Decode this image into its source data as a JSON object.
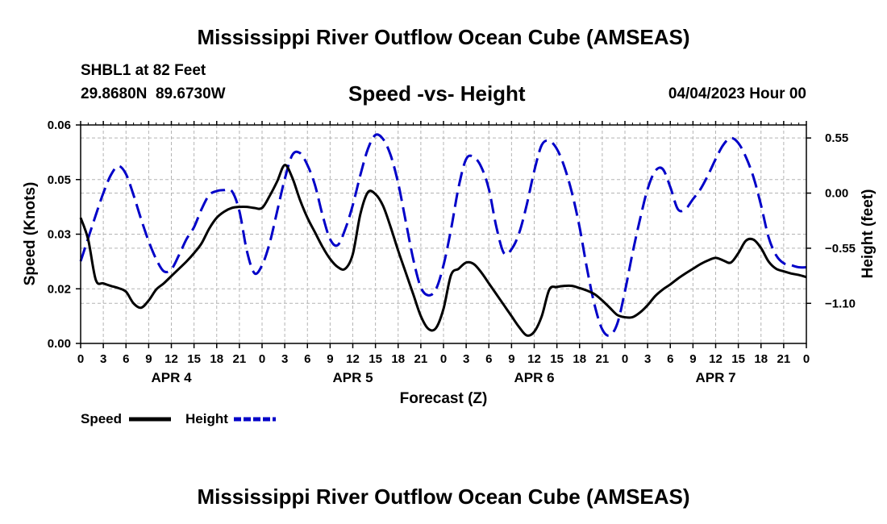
{
  "header": {
    "title": "Mississippi River Outflow Ocean Cube (AMSEAS)",
    "station": "SHBL1 at 82 Feet",
    "coords": "29.8680N  89.6730W",
    "datetime": "04/04/2023 Hour 00",
    "footer_title": "Mississippi River Outflow Ocean Cube (AMSEAS)"
  },
  "chart_data": {
    "type": "line",
    "title": "Speed -vs- Height",
    "xlabel": "Forecast (Z)",
    "ylabel_left": "Speed (Knots)",
    "ylabel_right": "Height (feet)",
    "grid": true,
    "xlim_hours": [
      0,
      96
    ],
    "ylim_left": [
      0.0,
      0.06
    ],
    "ylim_right": [
      -1.5,
      0.68
    ],
    "x_tick_labels": [
      "0",
      "3",
      "6",
      "9",
      "12",
      "15",
      "18",
      "21",
      "0",
      "3",
      "6",
      "9",
      "12",
      "15",
      "18",
      "21",
      "0",
      "3",
      "6",
      "9",
      "12",
      "15",
      "18",
      "21",
      "0",
      "3",
      "6",
      "9",
      "12",
      "15",
      "18",
      "21",
      "0"
    ],
    "y_left_ticks": [
      {
        "value": 0.0,
        "label": "0.00"
      },
      {
        "value": 0.015,
        "label": "0.02"
      },
      {
        "value": 0.03,
        "label": "0.03"
      },
      {
        "value": 0.045,
        "label": "0.05"
      },
      {
        "value": 0.06,
        "label": "0.06"
      }
    ],
    "y_right_ticks": [
      {
        "value": 0.55,
        "label": "0.55"
      },
      {
        "value": 0.0,
        "label": "0.00"
      },
      {
        "value": -0.55,
        "label": "−0.55"
      },
      {
        "value": -1.1,
        "label": "−1.10"
      }
    ],
    "day_labels": [
      {
        "hour": 12,
        "label": "APR 4"
      },
      {
        "hour": 36,
        "label": "APR 5"
      },
      {
        "hour": 60,
        "label": "APR 6"
      },
      {
        "hour": 84,
        "label": "APR 7"
      }
    ],
    "series": [
      {
        "name": "Speed",
        "axis": "left",
        "color": "#000000",
        "style": "solid",
        "x": [
          0,
          1,
          2,
          3,
          4,
          5,
          6,
          7,
          8,
          9,
          10,
          11,
          12,
          13,
          14,
          15,
          16,
          17,
          18,
          19,
          20,
          21,
          22,
          23,
          24,
          25,
          26,
          27,
          28,
          29,
          30,
          31,
          32,
          33,
          34,
          35,
          36,
          37,
          38,
          39,
          40,
          41,
          42,
          43,
          44,
          45,
          46,
          47,
          48,
          49,
          50,
          51,
          52,
          53,
          54,
          55,
          56,
          57,
          58,
          59,
          60,
          61,
          62,
          63,
          64,
          65,
          66,
          67,
          68,
          69,
          70,
          71,
          72,
          73,
          74,
          75,
          76,
          77,
          78,
          79,
          80,
          81,
          82,
          83,
          84,
          85,
          86,
          87,
          88,
          89,
          90,
          91,
          92,
          93,
          94,
          95,
          96
        ],
        "values": [
          0.0345,
          0.0285,
          0.0175,
          0.0165,
          0.0158,
          0.0152,
          0.0142,
          0.011,
          0.0098,
          0.0118,
          0.0148,
          0.0165,
          0.0185,
          0.0205,
          0.0225,
          0.0248,
          0.0275,
          0.0315,
          0.0345,
          0.0362,
          0.0372,
          0.0375,
          0.0375,
          0.0372,
          0.0372,
          0.0405,
          0.0445,
          0.049,
          0.0455,
          0.0395,
          0.0345,
          0.0305,
          0.0265,
          0.0232,
          0.021,
          0.0205,
          0.0245,
          0.0355,
          0.0415,
          0.041,
          0.0378,
          0.032,
          0.0255,
          0.0195,
          0.0135,
          0.0075,
          0.004,
          0.0042,
          0.0095,
          0.0188,
          0.0205,
          0.0222,
          0.0218,
          0.0195,
          0.0165,
          0.0135,
          0.0105,
          0.0075,
          0.0045,
          0.0022,
          0.0032,
          0.0075,
          0.0148,
          0.0155,
          0.0158,
          0.0158,
          0.0152,
          0.0145,
          0.0135,
          0.0118,
          0.0098,
          0.0078,
          0.0072,
          0.0072,
          0.0085,
          0.0105,
          0.013,
          0.0148,
          0.0162,
          0.0178,
          0.0192,
          0.0205,
          0.0218,
          0.0228,
          0.0235,
          0.0228,
          0.0222,
          0.0248,
          0.0282,
          0.0285,
          0.0262,
          0.0225,
          0.0205,
          0.0198,
          0.0192,
          0.0188,
          0.0182
        ]
      },
      {
        "name": "Height",
        "axis": "right",
        "color": "#0000c8",
        "style": "dashed",
        "x": [
          0,
          1,
          2,
          3,
          4,
          5,
          6,
          7,
          8,
          9,
          10,
          11,
          12,
          13,
          14,
          15,
          16,
          17,
          18,
          19,
          20,
          21,
          22,
          23,
          24,
          25,
          26,
          27,
          28,
          29,
          30,
          31,
          32,
          33,
          34,
          35,
          36,
          37,
          38,
          39,
          40,
          41,
          42,
          43,
          44,
          45,
          46,
          47,
          48,
          49,
          50,
          51,
          52,
          53,
          54,
          55,
          56,
          57,
          58,
          59,
          60,
          61,
          62,
          63,
          64,
          65,
          66,
          67,
          68,
          69,
          70,
          71,
          72,
          73,
          74,
          75,
          76,
          77,
          78,
          79,
          80,
          81,
          82,
          83,
          84,
          85,
          86,
          87,
          88,
          89,
          90,
          91,
          92,
          93,
          94,
          95,
          96
        ],
        "values": [
          -0.68,
          -0.45,
          -0.22,
          0.0,
          0.18,
          0.27,
          0.19,
          -0.02,
          -0.26,
          -0.48,
          -0.66,
          -0.78,
          -0.76,
          -0.62,
          -0.46,
          -0.34,
          -0.16,
          -0.02,
          0.02,
          0.03,
          0.02,
          -0.18,
          -0.58,
          -0.8,
          -0.72,
          -0.5,
          -0.18,
          0.14,
          0.38,
          0.4,
          0.28,
          0.08,
          -0.22,
          -0.46,
          -0.52,
          -0.36,
          -0.12,
          0.18,
          0.44,
          0.58,
          0.54,
          0.38,
          0.1,
          -0.28,
          -0.66,
          -0.94,
          -1.02,
          -0.96,
          -0.72,
          -0.36,
          0.06,
          0.34,
          0.36,
          0.26,
          0.04,
          -0.34,
          -0.6,
          -0.56,
          -0.4,
          -0.12,
          0.22,
          0.48,
          0.52,
          0.44,
          0.26,
          0.0,
          -0.34,
          -0.76,
          -1.12,
          -1.36,
          -1.42,
          -1.3,
          -0.98,
          -0.6,
          -0.26,
          0.04,
          0.22,
          0.24,
          0.06,
          -0.16,
          -0.16,
          -0.06,
          0.04,
          0.18,
          0.34,
          0.48,
          0.55,
          0.5,
          0.36,
          0.16,
          -0.12,
          -0.44,
          -0.62,
          -0.7,
          -0.72,
          -0.74,
          -0.74
        ]
      }
    ],
    "legend": [
      {
        "label": "Speed",
        "color": "#000000",
        "style": "solid"
      },
      {
        "label": "Height",
        "color": "#0000c8",
        "style": "dashed"
      }
    ]
  }
}
